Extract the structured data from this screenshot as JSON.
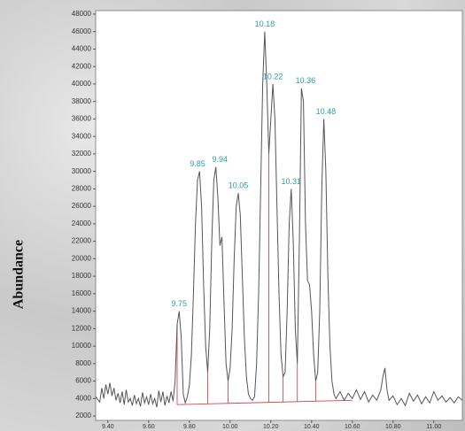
{
  "chart_data": {
    "type": "line",
    "y_label": "Abundance",
    "xlim": [
      9.34,
      11.14
    ],
    "ylim": [
      1500,
      48400
    ],
    "xticks": [
      {
        "value": 9.4,
        "label": "9.40"
      },
      {
        "value": 9.6,
        "label": "9.60"
      },
      {
        "value": 9.8,
        "label": "9.80"
      },
      {
        "value": 10.0,
        "label": "10.00"
      },
      {
        "value": 10.2,
        "label": "10.20"
      },
      {
        "value": 10.4,
        "label": "10.40"
      },
      {
        "value": 10.6,
        "label": "10.60"
      },
      {
        "value": 10.8,
        "label": "10.80"
      },
      {
        "value": 11.0,
        "label": "11.00"
      }
    ],
    "yticks": [
      2000,
      4000,
      6000,
      8000,
      10000,
      12000,
      14000,
      16000,
      18000,
      20000,
      22000,
      24000,
      26000,
      28000,
      30000,
      32000,
      34000,
      36000,
      38000,
      40000,
      42000,
      44000,
      46000,
      48000
    ],
    "grid": false,
    "color": "#555555",
    "x": [
      9.34,
      9.36,
      9.37,
      9.38,
      9.39,
      9.4,
      9.41,
      9.42,
      9.43,
      9.44,
      9.45,
      9.46,
      9.47,
      9.48,
      9.49,
      9.5,
      9.51,
      9.52,
      9.53,
      9.54,
      9.55,
      9.56,
      9.57,
      9.58,
      9.59,
      9.6,
      9.61,
      9.62,
      9.63,
      9.64,
      9.65,
      9.66,
      9.67,
      9.68,
      9.69,
      9.7,
      9.71,
      9.72,
      9.73,
      9.74,
      9.75,
      9.76,
      9.77,
      9.78,
      9.79,
      9.8,
      9.81,
      9.82,
      9.83,
      9.84,
      9.85,
      9.86,
      9.87,
      9.88,
      9.89,
      9.9,
      9.91,
      9.92,
      9.93,
      9.94,
      9.95,
      9.96,
      9.97,
      9.98,
      9.99,
      10.0,
      10.01,
      10.02,
      10.03,
      10.04,
      10.05,
      10.06,
      10.07,
      10.08,
      10.09,
      10.1,
      10.11,
      10.12,
      10.13,
      10.14,
      10.15,
      10.16,
      10.17,
      10.18,
      10.19,
      10.2,
      10.21,
      10.22,
      10.23,
      10.24,
      10.25,
      10.26,
      10.27,
      10.28,
      10.29,
      10.3,
      10.31,
      10.32,
      10.33,
      10.34,
      10.35,
      10.36,
      10.37,
      10.38,
      10.39,
      10.4,
      10.41,
      10.42,
      10.43,
      10.44,
      10.45,
      10.46,
      10.47,
      10.48,
      10.49,
      10.5,
      10.51,
      10.52,
      10.54,
      10.56,
      10.58,
      10.6,
      10.62,
      10.64,
      10.66,
      10.68,
      10.7,
      10.72,
      10.74,
      10.75,
      10.76,
      10.77,
      10.78,
      10.8,
      10.82,
      10.84,
      10.86,
      10.88,
      10.9,
      10.92,
      10.94,
      10.96,
      10.98,
      11.0,
      11.02,
      11.04,
      11.06,
      11.08,
      11.1,
      11.12,
      11.14
    ],
    "values": [
      4200,
      3600,
      5200,
      4000,
      5600,
      4500,
      5800,
      4300,
      5200,
      3800,
      4600,
      3500,
      4800,
      3300,
      5000,
      3600,
      4000,
      3200,
      4400,
      3400,
      4000,
      3100,
      4700,
      3500,
      4200,
      3300,
      4500,
      3400,
      4000,
      3000,
      4900,
      3600,
      4800,
      3200,
      4300,
      3500,
      4800,
      3700,
      6000,
      12500,
      14000,
      11000,
      4500,
      3500,
      4200,
      5500,
      9000,
      16000,
      24000,
      29000,
      30000,
      26000,
      17000,
      10000,
      7000,
      12000,
      22000,
      29000,
      30500,
      27000,
      21500,
      22500,
      15000,
      8000,
      6000,
      7500,
      12000,
      20000,
      26000,
      27500,
      25000,
      18000,
      11000,
      6500,
      4500,
      4000,
      3800,
      4200,
      8000,
      16000,
      28000,
      40000,
      46000,
      40000,
      32000,
      36000,
      40000,
      36000,
      26000,
      16000,
      9000,
      6500,
      7000,
      14000,
      24000,
      28000,
      22000,
      12000,
      8000,
      22000,
      39500,
      38000,
      24000,
      17500,
      17000,
      14000,
      9000,
      6000,
      7000,
      14000,
      28000,
      36000,
      30000,
      18000,
      10000,
      6000,
      4500,
      4000,
      4800,
      3800,
      4600,
      4000,
      5000,
      3900,
      4800,
      3600,
      4400,
      3800,
      5000,
      6500,
      7500,
      5000,
      3800,
      4300,
      3300,
      4000,
      3200,
      4600,
      3700,
      4400,
      3400,
      4200,
      3500,
      4800,
      3800,
      4300,
      3600,
      4100,
      3500,
      4200,
      3800
    ],
    "annotations": [
      {
        "label": "9.75",
        "x": 9.75,
        "y": 14000
      },
      {
        "label": "9.85",
        "x": 9.84,
        "y": 30000
      },
      {
        "label": "9.94",
        "x": 9.95,
        "y": 30500
      },
      {
        "label": "10.05",
        "x": 10.04,
        "y": 27500
      },
      {
        "label": "10.18",
        "x": 10.17,
        "y": 46000
      },
      {
        "label": "10.22",
        "x": 10.21,
        "y": 40000
      },
      {
        "label": "10.31",
        "x": 10.3,
        "y": 28000
      },
      {
        "label": "10.36",
        "x": 10.37,
        "y": 39500
      },
      {
        "label": "10.48",
        "x": 10.47,
        "y": 36000
      }
    ],
    "annotation_color": "#2a9fa8",
    "integration": {
      "color": "#d04a4a",
      "baseline_x": [
        9.74,
        10.6
      ],
      "baseline_y": [
        3300,
        3800
      ],
      "drops_x": [
        9.74,
        9.89,
        9.99,
        10.19,
        10.26,
        10.33,
        10.42
      ],
      "drops_y": [
        12500,
        7000,
        6000,
        32000,
        6500,
        8000,
        6000
      ]
    }
  }
}
